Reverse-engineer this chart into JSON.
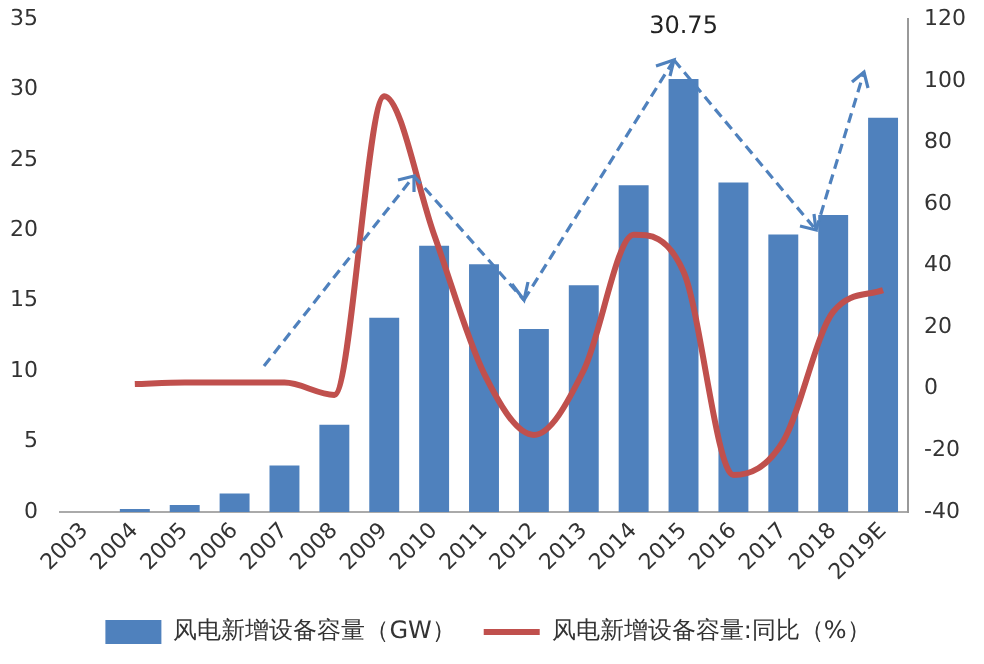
{
  "chart_data": {
    "type": "bar",
    "categories": [
      "2003",
      "2004",
      "2005",
      "2006",
      "2007",
      "2008",
      "2009",
      "2010",
      "2011",
      "2012",
      "2013",
      "2014",
      "2015",
      "2016",
      "2017",
      "2018",
      "2019E"
    ],
    "series": [
      {
        "name": "风电新增设备容量（GW）",
        "color": "#4f81bd",
        "values": [
          0,
          0.2,
          0.5,
          1.3,
          3.3,
          6.2,
          13.8,
          18.9,
          17.6,
          13,
          16.1,
          23.2,
          30.75,
          23.4,
          19.7,
          21.1,
          28
        ],
        "value_labels": [
          null,
          null,
          null,
          null,
          null,
          null,
          null,
          null,
          null,
          null,
          null,
          null,
          "30.75",
          null,
          null,
          null,
          null
        ]
      },
      {
        "name": "风电新增设备容量:同比（%）",
        "type": "line",
        "axis": "y2",
        "color": "#c0504d",
        "values": [
          null,
          1.5,
          2,
          2,
          2,
          -2,
          95,
          50,
          5,
          -15,
          6,
          50,
          38,
          -28,
          -17,
          25,
          32
        ]
      }
    ],
    "ylim": [
      0,
      35
    ],
    "yticks": [
      0,
      5,
      10,
      15,
      20,
      25,
      30,
      35
    ],
    "y2lim": [
      -40,
      120
    ],
    "y2ticks": [
      -40,
      -20,
      0,
      20,
      40,
      60,
      80,
      100,
      120
    ],
    "grid": false,
    "legend": "bottom",
    "marker": "none",
    "line_style": "solid"
  }
}
